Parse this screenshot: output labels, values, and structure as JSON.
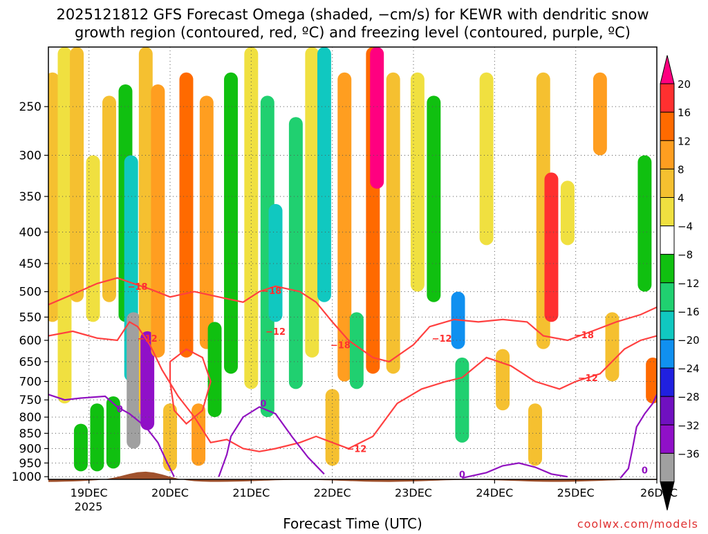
{
  "chart_data": {
    "type": "heatmap",
    "title_line1": "2025121812 GFS Forecast Omega (shaded, −cm/s) for KEWR with dendritic snow",
    "title_line2": "growth region (contoured, red, ºC) and freezing level (contoured, purple, ºC)",
    "xlabel": "Forecast Time (UTC)",
    "credit": "coolwx.com/models",
    "x_ticks": [
      "19DEC",
      "20DEC",
      "21DEC",
      "22DEC",
      "23DEC",
      "24DEC",
      "25DEC",
      "26DEC"
    ],
    "x_year_label": "2025",
    "x_range_days": [
      -0.5,
      7.0
    ],
    "y_ticks": [
      250,
      300,
      350,
      400,
      450,
      500,
      550,
      600,
      650,
      700,
      750,
      800,
      850,
      900,
      950,
      1000
    ],
    "y_range_hpa": [
      200,
      1010
    ],
    "y_scale": "log-pressure",
    "grid": true,
    "colorbar": {
      "labels": [
        "20",
        "16",
        "12",
        "8",
        "4",
        "−4",
        "−8",
        "−12",
        "−16",
        "−20",
        "−24",
        "−28",
        "−32",
        "−36"
      ],
      "colors": [
        "#ff0080",
        "#ff3030",
        "#ff6a00",
        "#ff9e20",
        "#f5c030",
        "#f0e040",
        "#ffffff",
        "#10c010",
        "#20d070",
        "#10c8c0",
        "#1090f0",
        "#2020e0",
        "#7010c0",
        "#9010c8",
        "#a0a0a0",
        "#000000"
      ]
    },
    "omega_bands": [
      {
        "day": -0.45,
        "p_top": 220,
        "p_bot": 560,
        "value": 6
      },
      {
        "day": -0.3,
        "p_top": 200,
        "p_bot": 760,
        "value": 5
      },
      {
        "day": -0.15,
        "p_top": 200,
        "p_bot": 520,
        "value": 6
      },
      {
        "day": -0.1,
        "p_top": 820,
        "p_bot": 980,
        "value": -6
      },
      {
        "day": 0.05,
        "p_top": 300,
        "p_bot": 560,
        "value": 5
      },
      {
        "day": 0.1,
        "p_top": 760,
        "p_bot": 980,
        "value": -6
      },
      {
        "day": 0.25,
        "p_top": 240,
        "p_bot": 520,
        "value": 6
      },
      {
        "day": 0.3,
        "p_top": 740,
        "p_bot": 970,
        "value": -7
      },
      {
        "day": 0.45,
        "p_top": 230,
        "p_bot": 560,
        "value": -6
      },
      {
        "day": 0.52,
        "p_top": 300,
        "p_bot": 700,
        "value": -14
      },
      {
        "day": 0.55,
        "p_top": 540,
        "p_bot": 900,
        "value": -34
      },
      {
        "day": 0.7,
        "p_top": 200,
        "p_bot": 800,
        "value": 6
      },
      {
        "day": 0.72,
        "p_top": 580,
        "p_bot": 840,
        "value": -30
      },
      {
        "day": 0.85,
        "p_top": 230,
        "p_bot": 640,
        "value": 10
      },
      {
        "day": 1.0,
        "p_top": 760,
        "p_bot": 980,
        "value": 6
      },
      {
        "day": 1.2,
        "p_top": 220,
        "p_bot": 640,
        "value": 14
      },
      {
        "day": 1.35,
        "p_top": 760,
        "p_bot": 960,
        "value": 10
      },
      {
        "day": 1.45,
        "p_top": 240,
        "p_bot": 620,
        "value": 8
      },
      {
        "day": 1.55,
        "p_top": 560,
        "p_bot": 800,
        "value": -6
      },
      {
        "day": 1.75,
        "p_top": 220,
        "p_bot": 680,
        "value": -6
      },
      {
        "day": 2.0,
        "p_top": 200,
        "p_bot": 720,
        "value": 5
      },
      {
        "day": 2.2,
        "p_top": 240,
        "p_bot": 800,
        "value": -8
      },
      {
        "day": 2.3,
        "p_top": 360,
        "p_bot": 560,
        "value": -14
      },
      {
        "day": 2.55,
        "p_top": 260,
        "p_bot": 720,
        "value": -10
      },
      {
        "day": 2.75,
        "p_top": 200,
        "p_bot": 640,
        "value": 5
      },
      {
        "day": 2.9,
        "p_top": 200,
        "p_bot": 520,
        "value": -14
      },
      {
        "day": 3.0,
        "p_top": 720,
        "p_bot": 960,
        "value": 6
      },
      {
        "day": 3.15,
        "p_top": 220,
        "p_bot": 700,
        "value": 8
      },
      {
        "day": 3.3,
        "p_top": 540,
        "p_bot": 720,
        "value": -8
      },
      {
        "day": 3.5,
        "p_top": 200,
        "p_bot": 680,
        "value": 14
      },
      {
        "day": 3.55,
        "p_top": 200,
        "p_bot": 340,
        "value": 22
      },
      {
        "day": 3.75,
        "p_top": 220,
        "p_bot": 680,
        "value": 6
      },
      {
        "day": 4.05,
        "p_top": 220,
        "p_bot": 500,
        "value": 5
      },
      {
        "day": 4.25,
        "p_top": 240,
        "p_bot": 520,
        "value": -7
      },
      {
        "day": 4.55,
        "p_top": 500,
        "p_bot": 620,
        "value": -18
      },
      {
        "day": 4.6,
        "p_top": 640,
        "p_bot": 880,
        "value": -8
      },
      {
        "day": 4.9,
        "p_top": 220,
        "p_bot": 420,
        "value": 5
      },
      {
        "day": 5.1,
        "p_top": 620,
        "p_bot": 780,
        "value": 6
      },
      {
        "day": 5.5,
        "p_top": 760,
        "p_bot": 960,
        "value": 6
      },
      {
        "day": 5.6,
        "p_top": 220,
        "p_bot": 620,
        "value": 6
      },
      {
        "day": 5.7,
        "p_top": 320,
        "p_bot": 560,
        "value": 16
      },
      {
        "day": 5.9,
        "p_top": 330,
        "p_bot": 420,
        "value": 5
      },
      {
        "day": 6.3,
        "p_top": 220,
        "p_bot": 300,
        "value": 8
      },
      {
        "day": 6.45,
        "p_top": 540,
        "p_bot": 700,
        "value": 6
      },
      {
        "day": 6.85,
        "p_top": 300,
        "p_bot": 500,
        "value": -6
      },
      {
        "day": 6.95,
        "p_top": 640,
        "p_bot": 760,
        "value": 14
      }
    ],
    "contours": [
      {
        "series": "dgz_top",
        "label": "−18",
        "color": "#ff4040",
        "points": [
          [
            -0.5,
            525
          ],
          [
            -0.2,
            505
          ],
          [
            0.1,
            485
          ],
          [
            0.35,
            475
          ],
          [
            0.55,
            485
          ],
          [
            0.75,
            495
          ],
          [
            1.0,
            510
          ],
          [
            1.3,
            500
          ],
          [
            1.6,
            510
          ],
          [
            1.9,
            520
          ],
          [
            2.1,
            500
          ],
          [
            2.3,
            490
          ],
          [
            2.6,
            500
          ],
          [
            2.8,
            520
          ],
          [
            3.0,
            560
          ],
          [
            3.2,
            600
          ],
          [
            3.5,
            640
          ],
          [
            3.7,
            650
          ],
          [
            4.0,
            610
          ],
          [
            4.2,
            570
          ],
          [
            4.5,
            555
          ],
          [
            4.8,
            560
          ],
          [
            5.1,
            555
          ],
          [
            5.4,
            560
          ],
          [
            5.6,
            590
          ],
          [
            5.9,
            600
          ],
          [
            6.2,
            580
          ],
          [
            6.5,
            560
          ],
          [
            6.8,
            545
          ],
          [
            7.0,
            530
          ]
        ]
      },
      {
        "series": "dgz_bottom",
        "label": "−12",
        "color": "#ff4040",
        "points": [
          [
            -0.5,
            590
          ],
          [
            -0.2,
            580
          ],
          [
            0.1,
            595
          ],
          [
            0.35,
            600
          ],
          [
            0.5,
            560
          ],
          [
            0.6,
            570
          ],
          [
            0.75,
            610
          ],
          [
            0.9,
            670
          ],
          [
            1.1,
            740
          ],
          [
            1.3,
            800
          ],
          [
            1.5,
            880
          ],
          [
            1.7,
            870
          ],
          [
            1.9,
            900
          ],
          [
            2.1,
            910
          ],
          [
            2.3,
            900
          ],
          [
            2.6,
            880
          ],
          [
            2.8,
            860
          ],
          [
            3.0,
            880
          ],
          [
            3.2,
            900
          ],
          [
            3.5,
            860
          ],
          [
            3.8,
            760
          ],
          [
            4.1,
            720
          ],
          [
            4.4,
            700
          ],
          [
            4.6,
            690
          ],
          [
            4.9,
            640
          ],
          [
            5.2,
            660
          ],
          [
            5.5,
            700
          ],
          [
            5.8,
            720
          ],
          [
            6.0,
            700
          ],
          [
            6.3,
            680
          ],
          [
            6.6,
            620
          ],
          [
            6.8,
            600
          ],
          [
            7.0,
            590
          ]
        ]
      },
      {
        "series": "dgz_loop",
        "label": "−12",
        "color": "#ff4040",
        "points": [
          [
            1.0,
            650
          ],
          [
            1.2,
            620
          ],
          [
            1.4,
            640
          ],
          [
            1.5,
            700
          ],
          [
            1.4,
            780
          ],
          [
            1.2,
            820
          ],
          [
            1.05,
            780
          ],
          [
            1.0,
            700
          ],
          [
            1.0,
            650
          ]
        ]
      },
      {
        "series": "freezing",
        "label": "0",
        "color": "#9010c0",
        "points": [
          [
            -0.5,
            735
          ],
          [
            -0.3,
            750
          ],
          [
            -0.1,
            745
          ],
          [
            0.2,
            740
          ],
          [
            0.35,
            770
          ],
          [
            0.5,
            790
          ],
          [
            0.7,
            830
          ],
          [
            0.85,
            880
          ],
          [
            0.95,
            940
          ],
          [
            1.05,
            1000
          ]
        ]
      },
      {
        "series": "freezing_2",
        "label": "0",
        "color": "#9010c0",
        "points": [
          [
            1.6,
            1000
          ],
          [
            1.7,
            920
          ],
          [
            1.75,
            860
          ],
          [
            1.9,
            800
          ],
          [
            2.1,
            770
          ],
          [
            2.3,
            790
          ],
          [
            2.5,
            860
          ],
          [
            2.7,
            930
          ],
          [
            2.9,
            990
          ]
        ]
      },
      {
        "series": "freezing_3",
        "label": "0",
        "color": "#9010c0",
        "points": [
          [
            4.6,
            1005
          ],
          [
            4.9,
            985
          ],
          [
            5.1,
            960
          ],
          [
            5.3,
            950
          ],
          [
            5.5,
            965
          ],
          [
            5.7,
            990
          ],
          [
            5.9,
            1000
          ]
        ]
      },
      {
        "series": "freezing_4",
        "label": "0",
        "color": "#9010c0",
        "points": [
          [
            6.55,
            1005
          ],
          [
            6.65,
            970
          ],
          [
            6.7,
            900
          ],
          [
            6.75,
            830
          ],
          [
            6.85,
            790
          ],
          [
            6.95,
            760
          ],
          [
            7.0,
            735
          ]
        ]
      }
    ],
    "contour_labels": [
      {
        "text": "−18",
        "day": 0.6,
        "p": 490
      },
      {
        "text": "−12",
        "day": 0.72,
        "p": 595
      },
      {
        "text": "−18",
        "day": 2.25,
        "p": 498
      },
      {
        "text": "−12",
        "day": 2.3,
        "p": 580
      },
      {
        "text": "−18",
        "day": 3.1,
        "p": 610
      },
      {
        "text": "−12",
        "day": 4.35,
        "p": 595
      },
      {
        "text": "−18",
        "day": 6.1,
        "p": 588
      },
      {
        "text": "−12",
        "day": 6.15,
        "p": 690
      },
      {
        "text": "−12",
        "day": 3.3,
        "p": 900
      },
      {
        "text": "0",
        "day": 0.38,
        "p": 775
      },
      {
        "text": "0",
        "day": 2.15,
        "p": 760
      },
      {
        "text": "0",
        "day": 4.6,
        "p": 990
      },
      {
        "text": "0",
        "day": 6.85,
        "p": 975
      }
    ]
  }
}
